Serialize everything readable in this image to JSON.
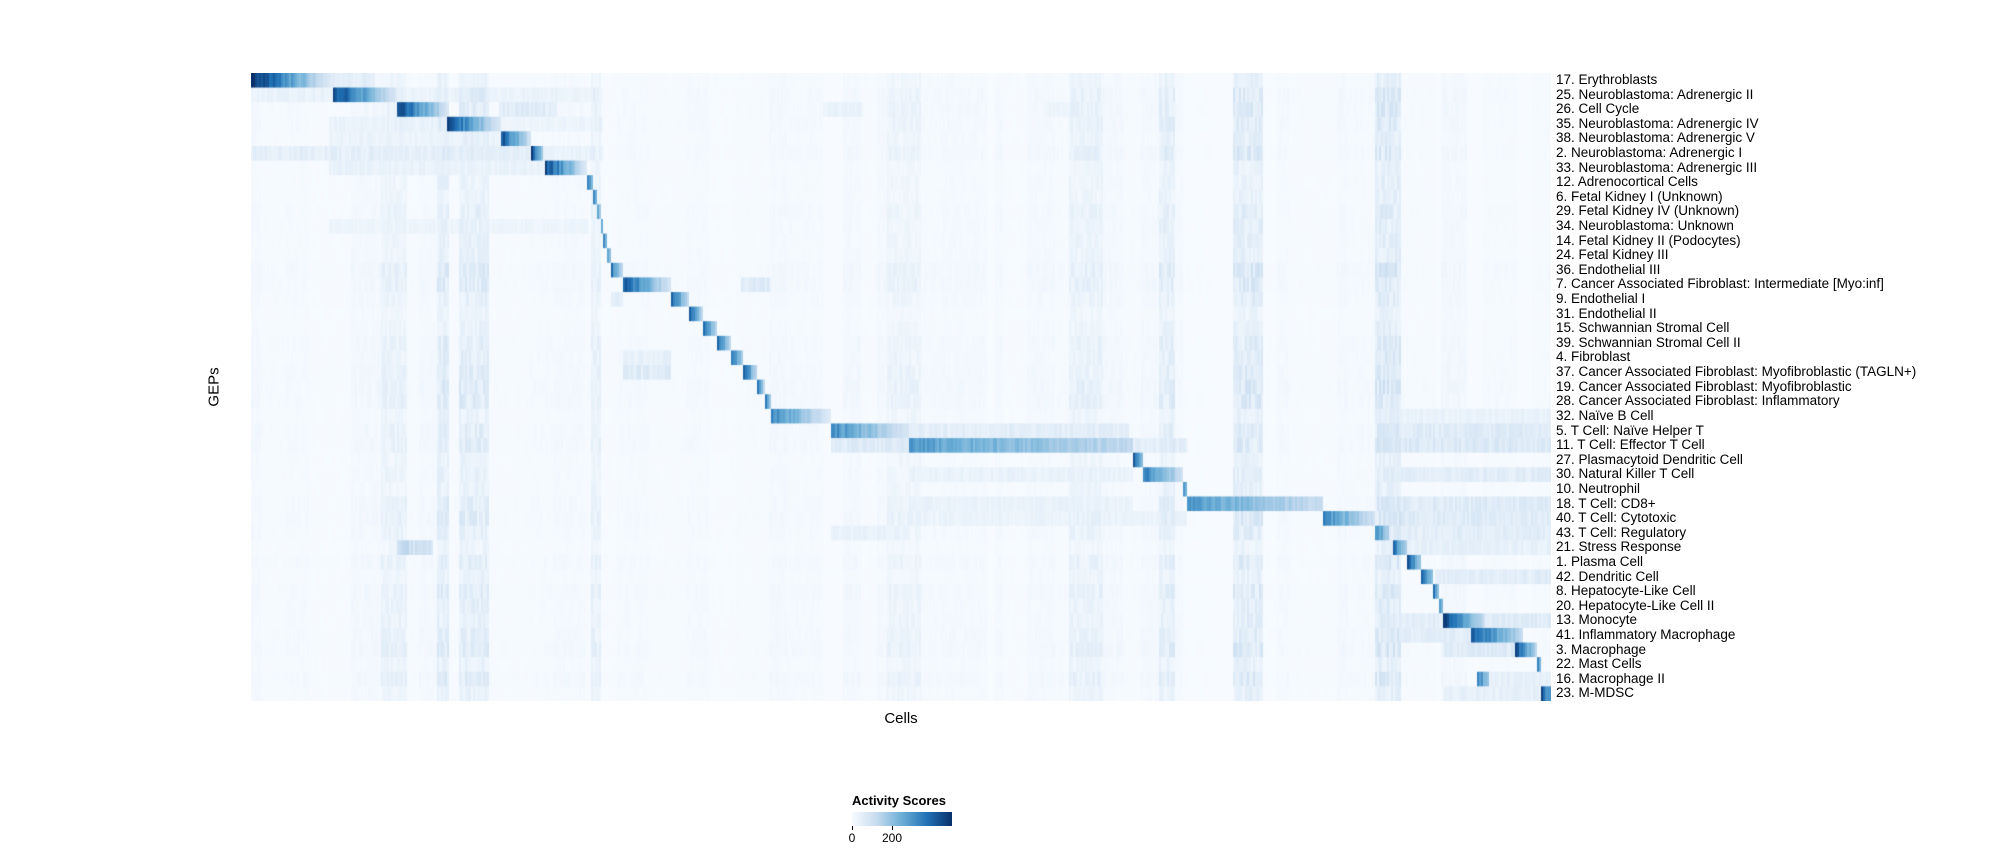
{
  "chart_data": {
    "type": "heatmap",
    "title": "",
    "xlabel": "Cells",
    "ylabel": "GEPs",
    "colormap": "Blues",
    "background_color": "#f7fbff",
    "dark_color": "#08306b",
    "legend": {
      "title": "Activity Scores",
      "ticks": [
        0,
        200
      ],
      "min": 0,
      "max": 500,
      "position": "bottom-center"
    },
    "grid": false,
    "rows": [
      {
        "label": "17. Erythroblasts",
        "blocks": [
          [
            0.0,
            0.063,
            500,
            0.1
          ]
        ],
        "bands": [
          [
            0.063,
            0.095,
            60
          ]
        ]
      },
      {
        "label": "25. Neuroblastoma: Adrenergic II",
        "blocks": [
          [
            0.063,
            0.112,
            460,
            0.15
          ]
        ],
        "bands": [
          [
            0.0,
            0.063,
            40
          ],
          [
            0.112,
            0.27,
            35
          ]
        ]
      },
      {
        "label": "26. Cell Cycle",
        "blocks": [
          [
            0.112,
            0.15,
            470,
            0.2
          ]
        ],
        "bands": [
          [
            0.19,
            0.235,
            70
          ],
          [
            0.44,
            0.47,
            40
          ],
          [
            0.61,
            0.63,
            35
          ]
        ]
      },
      {
        "label": "35. Neuroblastoma: Adrenergic IV",
        "blocks": [
          [
            0.15,
            0.192,
            450,
            0.15
          ]
        ],
        "bands": [
          [
            0.06,
            0.15,
            40
          ],
          [
            0.192,
            0.27,
            30
          ]
        ]
      },
      {
        "label": "38. Neuroblastoma: Adrenergic V",
        "blocks": [
          [
            0.192,
            0.215,
            430,
            0.2
          ]
        ],
        "bands": [
          [
            0.06,
            0.192,
            35
          ]
        ]
      },
      {
        "label": "2. Neuroblastoma: Adrenergic I",
        "blocks": [
          [
            0.215,
            0.224,
            480,
            0.3
          ]
        ],
        "bands": [
          [
            0.0,
            0.215,
            55
          ],
          [
            0.224,
            0.27,
            40
          ]
        ]
      },
      {
        "label": "33. Neuroblastoma: Adrenergic III",
        "blocks": [
          [
            0.226,
            0.258,
            450,
            0.15
          ]
        ],
        "bands": [
          [
            0.06,
            0.226,
            40
          ]
        ]
      },
      {
        "label": "12. Adrenocortical Cells",
        "blocks": [
          [
            0.258,
            0.262,
            380,
            0.5
          ]
        ],
        "bands": []
      },
      {
        "label": "6. Fetal Kidney I (Unknown)",
        "blocks": [
          [
            0.262,
            0.2655,
            370,
            0.5
          ]
        ],
        "bands": []
      },
      {
        "label": "29. Fetal Kidney IV (Unknown)",
        "blocks": [
          [
            0.2655,
            0.268,
            350,
            0.5
          ]
        ],
        "bands": []
      },
      {
        "label": "34. Neuroblastoma: Unknown",
        "blocks": [
          [
            0.268,
            0.2705,
            350,
            0.5
          ]
        ],
        "bands": [
          [
            0.06,
            0.26,
            30
          ]
        ]
      },
      {
        "label": "14. Fetal Kidney II (Podocytes)",
        "blocks": [
          [
            0.2705,
            0.273,
            360,
            0.5
          ]
        ],
        "bands": []
      },
      {
        "label": "24. Fetal Kidney III",
        "blocks": [
          [
            0.273,
            0.2755,
            350,
            0.5
          ]
        ],
        "bands": []
      },
      {
        "label": "36. Endothelial III",
        "blocks": [
          [
            0.2755,
            0.285,
            400,
            0.3
          ]
        ],
        "bands": []
      },
      {
        "label": "7. Cancer Associated Fibroblast: Intermediate [Myo:inf]",
        "blocks": [
          [
            0.285,
            0.322,
            430,
            0.2
          ]
        ],
        "bands": [
          [
            0.376,
            0.4,
            70
          ]
        ]
      },
      {
        "label": "9. Endothelial I",
        "blocks": [
          [
            0.322,
            0.336,
            440,
            0.25
          ]
        ],
        "bands": [
          [
            0.2755,
            0.285,
            60
          ]
        ]
      },
      {
        "label": "31. Endothelial II",
        "blocks": [
          [
            0.336,
            0.347,
            420,
            0.25
          ]
        ],
        "bands": []
      },
      {
        "label": "15. Schwannian Stromal Cell",
        "blocks": [
          [
            0.347,
            0.358,
            430,
            0.25
          ]
        ],
        "bands": []
      },
      {
        "label": "39. Schwannian Stromal Cell II",
        "blocks": [
          [
            0.358,
            0.368,
            410,
            0.3
          ]
        ],
        "bands": []
      },
      {
        "label": "4. Fibroblast",
        "blocks": [
          [
            0.368,
            0.378,
            420,
            0.3
          ]
        ],
        "bands": [
          [
            0.285,
            0.322,
            50
          ]
        ]
      },
      {
        "label": "37. Cancer Associated Fibroblast: Myofibroblastic (TAGLN+)",
        "blocks": [
          [
            0.378,
            0.388,
            430,
            0.3
          ]
        ],
        "bands": [
          [
            0.285,
            0.322,
            70
          ]
        ]
      },
      {
        "label": "19. Cancer Associated Fibroblast: Myofibroblastic",
        "blocks": [
          [
            0.388,
            0.394,
            410,
            0.35
          ]
        ],
        "bands": []
      },
      {
        "label": "28. Cancer Associated Fibroblast: Inflammatory",
        "blocks": [
          [
            0.394,
            0.4,
            400,
            0.35
          ]
        ],
        "bands": []
      },
      {
        "label": "32. Naïve B Cell",
        "blocks": [
          [
            0.4,
            0.445,
            340,
            0.2
          ]
        ],
        "bands": [
          [
            0.87,
            1.0,
            40
          ]
        ]
      },
      {
        "label": "5. T Cell: Naïve Helper T",
        "blocks": [
          [
            0.445,
            0.505,
            330,
            0.25
          ]
        ],
        "bands": [
          [
            0.505,
            0.675,
            60
          ],
          [
            0.87,
            1.0,
            70
          ]
        ]
      },
      {
        "label": "11. T Cell: Effector T Cell",
        "blocks": [
          [
            0.505,
            0.678,
            290,
            0.45
          ]
        ],
        "bands": [
          [
            0.445,
            0.505,
            70
          ],
          [
            0.678,
            0.72,
            60
          ],
          [
            0.87,
            1.0,
            80
          ]
        ]
      },
      {
        "label": "27. Plasmacytoid Dendritic Cell",
        "blocks": [
          [
            0.678,
            0.686,
            420,
            0.4
          ]
        ],
        "bands": []
      },
      {
        "label": "30. Natural Killer T Cell",
        "blocks": [
          [
            0.686,
            0.716,
            350,
            0.3
          ]
        ],
        "bands": [
          [
            0.505,
            0.678,
            40
          ],
          [
            0.87,
            1.0,
            60
          ]
        ]
      },
      {
        "label": "10. Neutrophil",
        "blocks": [
          [
            0.716,
            0.72,
            380,
            0.5
          ]
        ],
        "bands": []
      },
      {
        "label": "18. T Cell: CD8+",
        "blocks": [
          [
            0.72,
            0.824,
            290,
            0.4
          ]
        ],
        "bands": [
          [
            0.505,
            0.678,
            40
          ],
          [
            0.87,
            1.0,
            70
          ]
        ]
      },
      {
        "label": "40. T Cell: Cytotoxic",
        "blocks": [
          [
            0.824,
            0.864,
            330,
            0.3
          ]
        ],
        "bands": [
          [
            0.505,
            0.72,
            35
          ],
          [
            0.87,
            1.0,
            70
          ]
        ]
      },
      {
        "label": "43. T Cell: Regulatory",
        "blocks": [
          [
            0.864,
            0.875,
            340,
            0.4
          ]
        ],
        "bands": [
          [
            0.445,
            0.505,
            40
          ],
          [
            0.87,
            1.0,
            60
          ]
        ]
      },
      {
        "label": "21. Stress Response",
        "blocks": [
          [
            0.877,
            0.889,
            400,
            0.3
          ]
        ],
        "bands": [
          [
            0.112,
            0.14,
            120
          ],
          [
            0.87,
            1.0,
            50
          ]
        ]
      },
      {
        "label": "1. Plasma Cell",
        "blocks": [
          [
            0.889,
            0.899,
            420,
            0.4
          ]
        ],
        "bands": []
      },
      {
        "label": "42. Dendritic Cell",
        "blocks": [
          [
            0.899,
            0.909,
            400,
            0.4
          ]
        ],
        "bands": [
          [
            0.91,
            1.0,
            60
          ]
        ]
      },
      {
        "label": "8. Hepatocyte-Like Cell",
        "blocks": [
          [
            0.909,
            0.9125,
            380,
            0.5
          ]
        ],
        "bands": []
      },
      {
        "label": "20. Hepatocyte-Like Cell II",
        "blocks": [
          [
            0.9125,
            0.916,
            370,
            0.5
          ]
        ],
        "bands": []
      },
      {
        "label": "13. Monocyte",
        "blocks": [
          [
            0.916,
            0.948,
            460,
            0.25
          ]
        ],
        "bands": [
          [
            0.87,
            0.916,
            60
          ],
          [
            0.948,
            1.0,
            70
          ]
        ]
      },
      {
        "label": "41. Inflammatory Macrophage",
        "blocks": [
          [
            0.938,
            0.978,
            420,
            0.3
          ]
        ],
        "bands": [
          [
            0.87,
            0.938,
            60
          ]
        ]
      },
      {
        "label": "3. Macrophage",
        "blocks": [
          [
            0.972,
            0.988,
            440,
            0.3
          ]
        ],
        "bands": [
          [
            0.916,
            0.972,
            70
          ]
        ]
      },
      {
        "label": "22. Mast Cells",
        "blocks": [
          [
            0.988,
            0.991,
            420,
            0.6
          ]
        ],
        "bands": []
      },
      {
        "label": "16. Macrophage II",
        "blocks": [
          [
            0.942,
            0.952,
            380,
            0.4
          ]
        ],
        "bands": [
          [
            0.952,
            1.0,
            50
          ]
        ]
      },
      {
        "label": "23. M-MDSC",
        "blocks": [
          [
            0.991,
            1.0,
            470,
            0.5
          ]
        ],
        "bands": [
          [
            0.916,
            0.991,
            50
          ]
        ]
      }
    ]
  }
}
